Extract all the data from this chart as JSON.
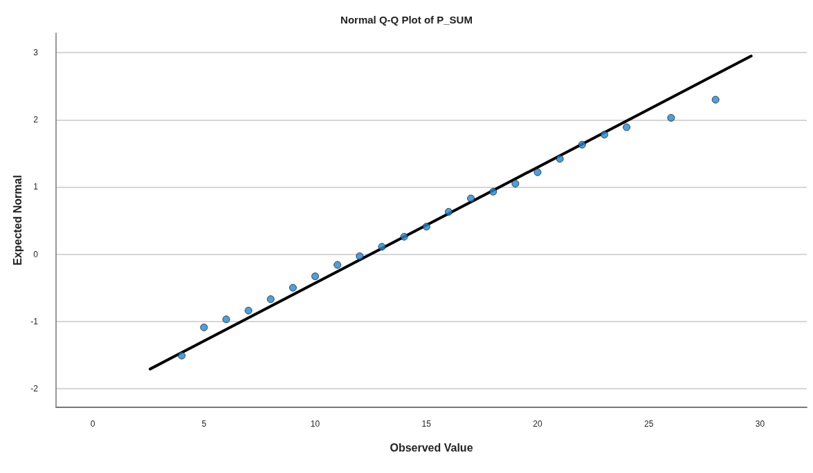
{
  "chart_data": {
    "type": "scatter",
    "title": "Normal Q-Q Plot of P_SUM",
    "xlabel": "Observed Value",
    "ylabel": "Expected Normal",
    "x": [
      4,
      5,
      6,
      7,
      8,
      9,
      10,
      11,
      12,
      13,
      14,
      15,
      16,
      17,
      18,
      19,
      20,
      21,
      22,
      23,
      24,
      26,
      28
    ],
    "series": [
      {
        "color": "#1e88d8",
        "marker": "circle",
        "values": [
          -1.51,
          -1.09,
          -0.97,
          -0.84,
          -0.67,
          -0.5,
          -0.33,
          -0.16,
          -0.03,
          0.11,
          0.26,
          0.41,
          0.63,
          0.83,
          0.93,
          1.05,
          1.22,
          1.42,
          1.63,
          1.78,
          1.89,
          2.03,
          2.3
        ]
      },
      {
        "type": "line",
        "color": "#000000",
        "marker": "none",
        "line_style": "solid",
        "x": [
          2.58,
          29.6
        ],
        "values": [
          -1.71,
          2.95
        ]
      }
    ],
    "xlim": [
      -1.65,
      32.1
    ],
    "xticks": [
      0,
      5,
      10,
      15,
      20,
      25,
      30
    ],
    "ylim": [
      -2.28,
      3.29
    ],
    "yticks": [
      -2,
      -1,
      0,
      1,
      2,
      3
    ],
    "grid": "y"
  }
}
